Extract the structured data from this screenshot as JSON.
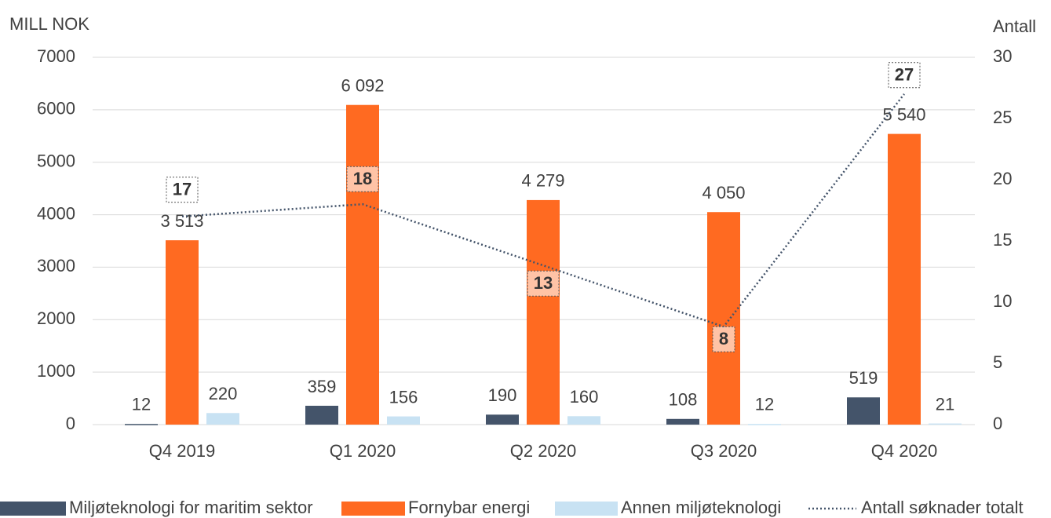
{
  "chart_data": {
    "type": "bar_line",
    "y_axis_label": "MILL NOK",
    "y2_axis_label": "Antall",
    "categories": [
      "Q4 2019",
      "Q1 2020",
      "Q2 2020",
      "Q3 2020",
      "Q4 2020"
    ],
    "ylim": [
      0,
      7000
    ],
    "yticks": [
      0,
      1000,
      2000,
      3000,
      4000,
      5000,
      6000,
      7000
    ],
    "y2lim": [
      0,
      30
    ],
    "y2ticks": [
      0,
      5,
      10,
      15,
      20,
      25,
      30
    ],
    "grid": true,
    "series": [
      {
        "name": "Miljøteknologi for maritim sektor",
        "type": "bar",
        "color": "#44546a",
        "values": [
          12,
          359,
          190,
          108,
          519
        ]
      },
      {
        "name": "Fornybar energi",
        "type": "bar",
        "color": "#ff6a21",
        "values": [
          3513,
          6092,
          4279,
          4050,
          5540
        ],
        "value_labels": [
          "3 513",
          "6 092",
          "4 279",
          "4 050",
          "5 540"
        ]
      },
      {
        "name": "Annen miljøteknologi",
        "type": "bar",
        "color": "#c8e2f3",
        "values": [
          220,
          156,
          160,
          12,
          21
        ]
      },
      {
        "name": "Antall søknader totalt",
        "type": "line",
        "axis": "y2",
        "color": "#44546a",
        "values": [
          17,
          18,
          13,
          8,
          27
        ]
      }
    ]
  }
}
